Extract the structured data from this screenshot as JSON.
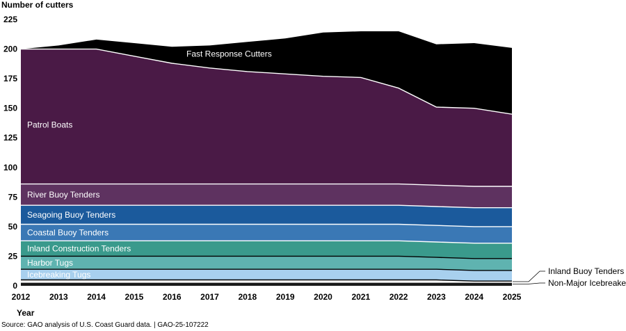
{
  "chart_data": {
    "type": "area",
    "stacked": true,
    "ylabel": "Number of cutters",
    "xlabel": "Year",
    "ylim": [
      0,
      225
    ],
    "yticks": [
      0,
      25,
      50,
      75,
      100,
      125,
      150,
      175,
      200,
      225
    ],
    "x": [
      2012,
      2013,
      2014,
      2015,
      2016,
      2017,
      2018,
      2019,
      2020,
      2021,
      2022,
      2023,
      2024,
      2025
    ],
    "series": [
      {
        "name": "Non-Major Icebreaker",
        "color": "#1a1a1a",
        "values": [
          3,
          3,
          3,
          3,
          3,
          3,
          3,
          3,
          3,
          3,
          3,
          3,
          3,
          3
        ]
      },
      {
        "name": "Inland Buoy Tenders",
        "color": "#ffffff",
        "values": [
          2,
          2,
          2,
          2,
          2,
          2,
          2,
          2,
          2,
          2,
          2,
          2,
          1,
          1
        ]
      },
      {
        "name": "Icebreaking Tugs",
        "color": "#a8d0ee",
        "values": [
          9,
          9,
          9,
          9,
          9,
          9,
          9,
          9,
          9,
          9,
          9,
          9,
          9,
          9
        ]
      },
      {
        "name": "Harbor Tugs",
        "color": "#5fb3b0",
        "values": [
          11,
          11,
          11,
          11,
          11,
          11,
          11,
          11,
          11,
          11,
          11,
          10,
          10,
          10
        ]
      },
      {
        "name": "Inland Construction Tenders",
        "color": "#3a9a8c",
        "values": [
          13,
          13,
          13,
          13,
          13,
          13,
          13,
          13,
          13,
          13,
          13,
          13,
          13,
          13
        ]
      },
      {
        "name": "Coastal Buoy Tenders",
        "color": "#3a78b5",
        "values": [
          14,
          14,
          14,
          14,
          14,
          14,
          14,
          14,
          14,
          14,
          14,
          14,
          14,
          14
        ]
      },
      {
        "name": "Seagoing Buoy Tenders",
        "color": "#1b5a9c",
        "values": [
          16,
          16,
          16,
          16,
          16,
          16,
          16,
          16,
          16,
          16,
          16,
          16,
          16,
          16
        ]
      },
      {
        "name": "River Buoy Tenders",
        "color": "#5e3260",
        "values": [
          18,
          18,
          18,
          18,
          18,
          18,
          18,
          18,
          18,
          18,
          18,
          18,
          18,
          18
        ]
      },
      {
        "name": "Patrol Boats",
        "color": "#4a1a46",
        "values": [
          114,
          114,
          114,
          108,
          102,
          98,
          95,
          93,
          91,
          90,
          81,
          66,
          66,
          61
        ]
      },
      {
        "name": "Fast Response Cutters",
        "color": "#000000",
        "values": [
          0,
          3,
          8,
          11,
          14,
          19,
          25,
          30,
          37,
          39,
          48,
          53,
          55,
          56
        ]
      }
    ]
  },
  "source": "Source: GAO analysis of U.S. Coast Guard data.  |  GAO-25-107222"
}
